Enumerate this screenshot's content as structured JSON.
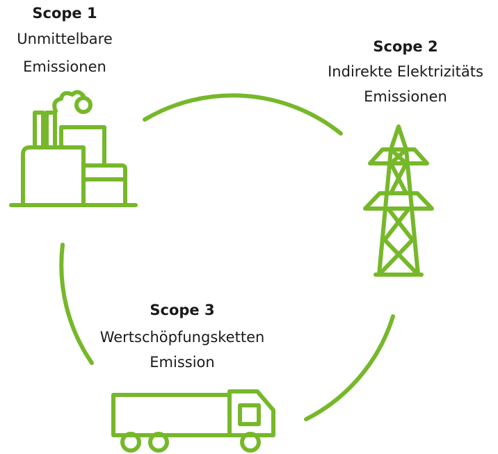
{
  "nodes": [
    {
      "title": "Scope 1",
      "lines": [
        "Unmittelbare",
        "Emissionen"
      ]
    },
    {
      "title": "Scope 2",
      "lines": [
        "Indirekte Elektrizitäts",
        "Emissionen"
      ]
    },
    {
      "title": "Scope 3",
      "lines": [
        "Wertschöpfungsketten",
        "Emission"
      ]
    }
  ]
}
